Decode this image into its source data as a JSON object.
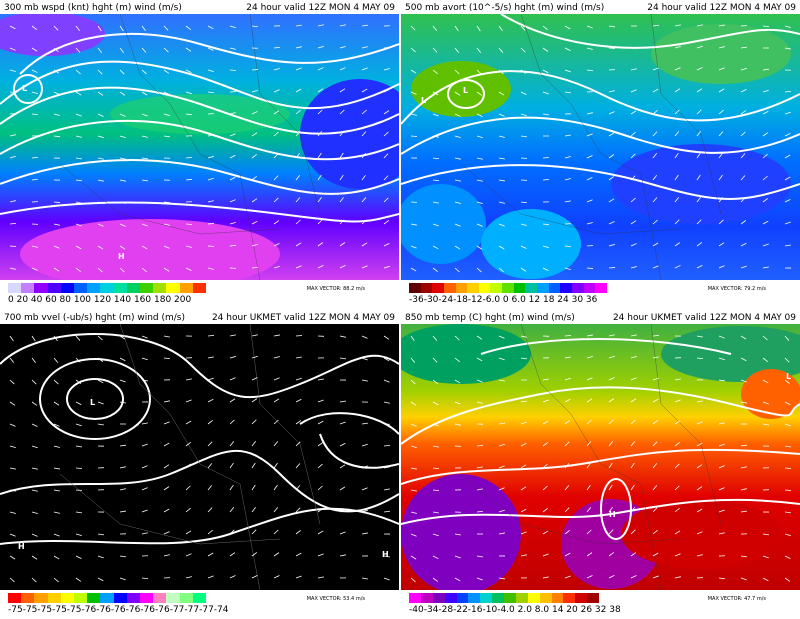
{
  "panels": [
    {
      "title": "300 mb wspd (knt) hght (m) wind (m/s)",
      "valid": "24 hour  valid 12Z MON  4 MAY 09",
      "max_vector": "MAX VECTOR:  88.2 m/s",
      "colorbar_ticks": "0  20  40  60  80 100 120 140 160 180 200",
      "colors": [
        "#d7d7ff",
        "#c080ff",
        "#9000ff",
        "#5000ff",
        "#0000ff",
        "#0060ff",
        "#00a0ff",
        "#00d0e0",
        "#00e0a0",
        "#00d060",
        "#40d000",
        "#a0e000",
        "#ffff00",
        "#ffa000",
        "#ff3000"
      ],
      "labels": {
        "h1": "H",
        "l1": "L"
      }
    },
    {
      "title": "500 mb avort (10^-5/s) hght (m) wind (m/s)",
      "valid": "24 hour  valid 12Z MON  4 MAY 09",
      "max_vector": "MAX VECTOR:  79.2 m/s",
      "colorbar_ticks": "-36-30-24-18-12-6.0 0 6.0 12  18  24 30 36",
      "colors": [
        "#600000",
        "#a00000",
        "#e00000",
        "#ff6000",
        "#ffa000",
        "#ffd000",
        "#ffff00",
        "#c0ff00",
        "#60e000",
        "#00c000",
        "#00c0a0",
        "#00a0ff",
        "#0060ff",
        "#2000ff",
        "#8000ff",
        "#c000ff",
        "#ff00ff"
      ],
      "labels": {
        "l1": "L",
        "l2": "L"
      }
    },
    {
      "title": "700 mb vvel (-ub/s) hght (m) wind (m/s)",
      "valid": "24 hour UKMET  valid 12Z MON  4 MAY 09",
      "max_vector": "MAX VECTOR:  53.4 m/s",
      "colorbar_ticks": "-75-75-75-75-75-76-76-76-76-76-76-77-77-77-74",
      "colors": [
        "#ff0000",
        "#ff6000",
        "#ffa000",
        "#ffd000",
        "#ffff00",
        "#c0ff00",
        "#00c000",
        "#00a0ff",
        "#0000ff",
        "#8000ff",
        "#ff00ff",
        "#ff80c0",
        "#c0ffc0",
        "#80ff80",
        "#00ff80"
      ],
      "labels": {
        "l1": "L",
        "h1": "H",
        "h2": "H"
      }
    },
    {
      "title": "850 mb temp (C) hght (m) wind (m/s)",
      "valid": "24 hour UKMET  valid 12Z MON  4 MAY 09",
      "max_vector": "MAX VECTOR:  47.7 m/s",
      "colorbar_ticks": "-40-34-28-22-16-10-4.0 2.0 8.0 14 20 26 32 38",
      "colors": [
        "#ff00ff",
        "#c000c0",
        "#8000c0",
        "#4000ff",
        "#0040ff",
        "#0090ff",
        "#00d0d0",
        "#00c060",
        "#40c000",
        "#a0d000",
        "#ffff00",
        "#ffc000",
        "#ff8000",
        "#ff3000",
        "#d00000",
        "#a00000"
      ],
      "labels": {
        "h1": "H",
        "l1": "L"
      }
    }
  ]
}
